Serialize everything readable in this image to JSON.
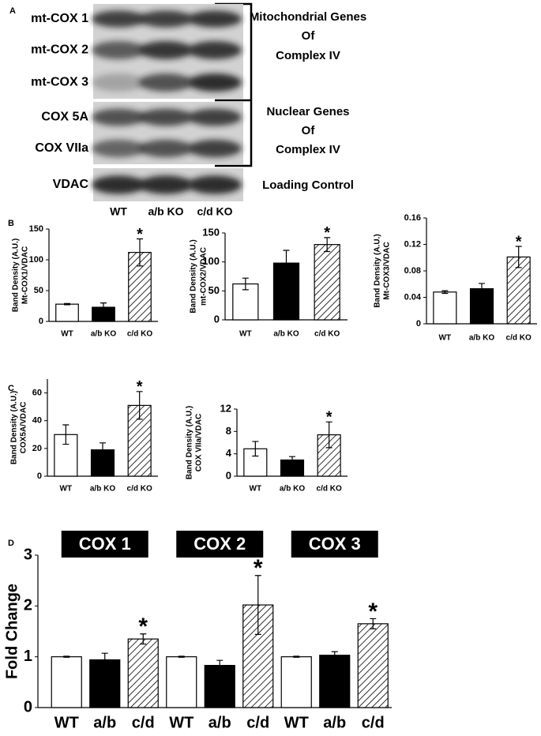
{
  "panel_labels": [
    "A",
    "B",
    "C",
    "D"
  ],
  "blot": {
    "rows": [
      "mt-COX 1",
      "mt-COX 2",
      "mt-COX 3",
      "COX 5A",
      "COX VIIa",
      "VDAC"
    ],
    "groups": [
      [
        "Mitochondrial Genes",
        "Of",
        "Complex IV"
      ],
      [
        "Nuclear Genes",
        "Of",
        "Complex IV"
      ],
      [
        "Loading Control"
      ]
    ],
    "lanes": [
      "WT",
      "a/b KO",
      "c/d KO"
    ]
  },
  "chart_data": [
    {
      "type": "bar",
      "y_label": [
        "Band Density (A.U.)",
        "Mt-COX1/VDAC"
      ],
      "categories": [
        "WT",
        "a/b KO",
        "c/d KO"
      ],
      "values": [
        28,
        23,
        112
      ],
      "errors": [
        1,
        7,
        22
      ],
      "fills": [
        "#ffffff",
        "#000000",
        "hatch"
      ],
      "ylim": [
        0,
        150
      ],
      "yticks": [
        0,
        50,
        100,
        150
      ],
      "annotations": [
        {
          "text": "*",
          "category": "c/d KO"
        }
      ]
    },
    {
      "type": "bar",
      "y_label": [
        "Band Density (A.U.)",
        "mt-COX2/VDAC"
      ],
      "categories": [
        "WT",
        "a/b KO",
        "c/d KO"
      ],
      "values": [
        62,
        98,
        130
      ],
      "errors": [
        10,
        22,
        12
      ],
      "fills": [
        "#ffffff",
        "#000000",
        "hatch"
      ],
      "ylim": [
        0,
        150
      ],
      "yticks": [
        0,
        50,
        100,
        150
      ],
      "annotations": [
        {
          "text": "*",
          "category": "c/d KO"
        }
      ]
    },
    {
      "type": "bar",
      "y_label": [
        "Band Density (A.U.)",
        "Mt-COX3/VDAC"
      ],
      "categories": [
        "WT",
        "a/b KO",
        "c/d KO"
      ],
      "values": [
        0.048,
        0.053,
        0.101
      ],
      "errors": [
        0.002,
        0.008,
        0.016
      ],
      "fills": [
        "#ffffff",
        "#000000",
        "hatch"
      ],
      "ylim": [
        0,
        0.16
      ],
      "yticks": [
        0,
        0.04,
        0.08,
        0.12,
        0.16
      ],
      "annotations": [
        {
          "text": "*",
          "category": "c/d KO"
        }
      ]
    },
    {
      "type": "bar",
      "y_label": [
        "Band Density (A.U.)",
        "COX5A/VDAC"
      ],
      "categories": [
        "WT",
        "a/b KO",
        "c/d KO"
      ],
      "values": [
        30,
        19,
        51
      ],
      "errors": [
        7,
        5,
        10
      ],
      "fills": [
        "#ffffff",
        "#000000",
        "hatch"
      ],
      "ylim": [
        0,
        70
      ],
      "yticks": [
        0,
        20,
        40,
        60
      ],
      "annotations": [
        {
          "text": "*",
          "category": "c/d KO"
        }
      ]
    },
    {
      "type": "bar",
      "y_label": [
        "Band Density (A.U.)",
        "COX VIIa/VDAC"
      ],
      "categories": [
        "WT",
        "a/b KO",
        "c/d KO"
      ],
      "values": [
        4.9,
        2.9,
        7.4
      ],
      "errors": [
        1.3,
        0.6,
        2.3
      ],
      "fills": [
        "#ffffff",
        "#000000",
        "hatch"
      ],
      "ylim": [
        0,
        12
      ],
      "yticks": [
        0,
        4,
        8,
        12
      ],
      "annotations": [
        {
          "text": "*",
          "category": "c/d KO"
        }
      ]
    },
    {
      "type": "grouped_bar",
      "y_label": "Fold Change",
      "ylim": [
        0,
        3
      ],
      "yticks": [
        0,
        1,
        2,
        3
      ],
      "fills": [
        "#ffffff",
        "#000000",
        "hatch"
      ],
      "groups": [
        {
          "title": "COX 1",
          "categories": [
            "WT",
            "a/b",
            "c/d"
          ],
          "values": [
            1,
            0.94,
            1.35
          ],
          "errors": [
            0.01,
            0.13,
            0.1
          ],
          "annotations": [
            {
              "text": "*",
              "category": "c/d"
            }
          ]
        },
        {
          "title": "COX 2",
          "categories": [
            "WT",
            "a/b",
            "c/d"
          ],
          "values": [
            1,
            0.83,
            2.02
          ],
          "errors": [
            0.01,
            0.1,
            0.58
          ],
          "annotations": [
            {
              "text": "*",
              "category": "c/d"
            }
          ]
        },
        {
          "title": "COX 3",
          "categories": [
            "WT",
            "a/b",
            "c/d"
          ],
          "values": [
            1,
            1.03,
            1.65
          ],
          "errors": [
            0.01,
            0.07,
            0.1
          ],
          "annotations": [
            {
              "text": "*",
              "category": "c/d"
            }
          ]
        }
      ]
    }
  ]
}
